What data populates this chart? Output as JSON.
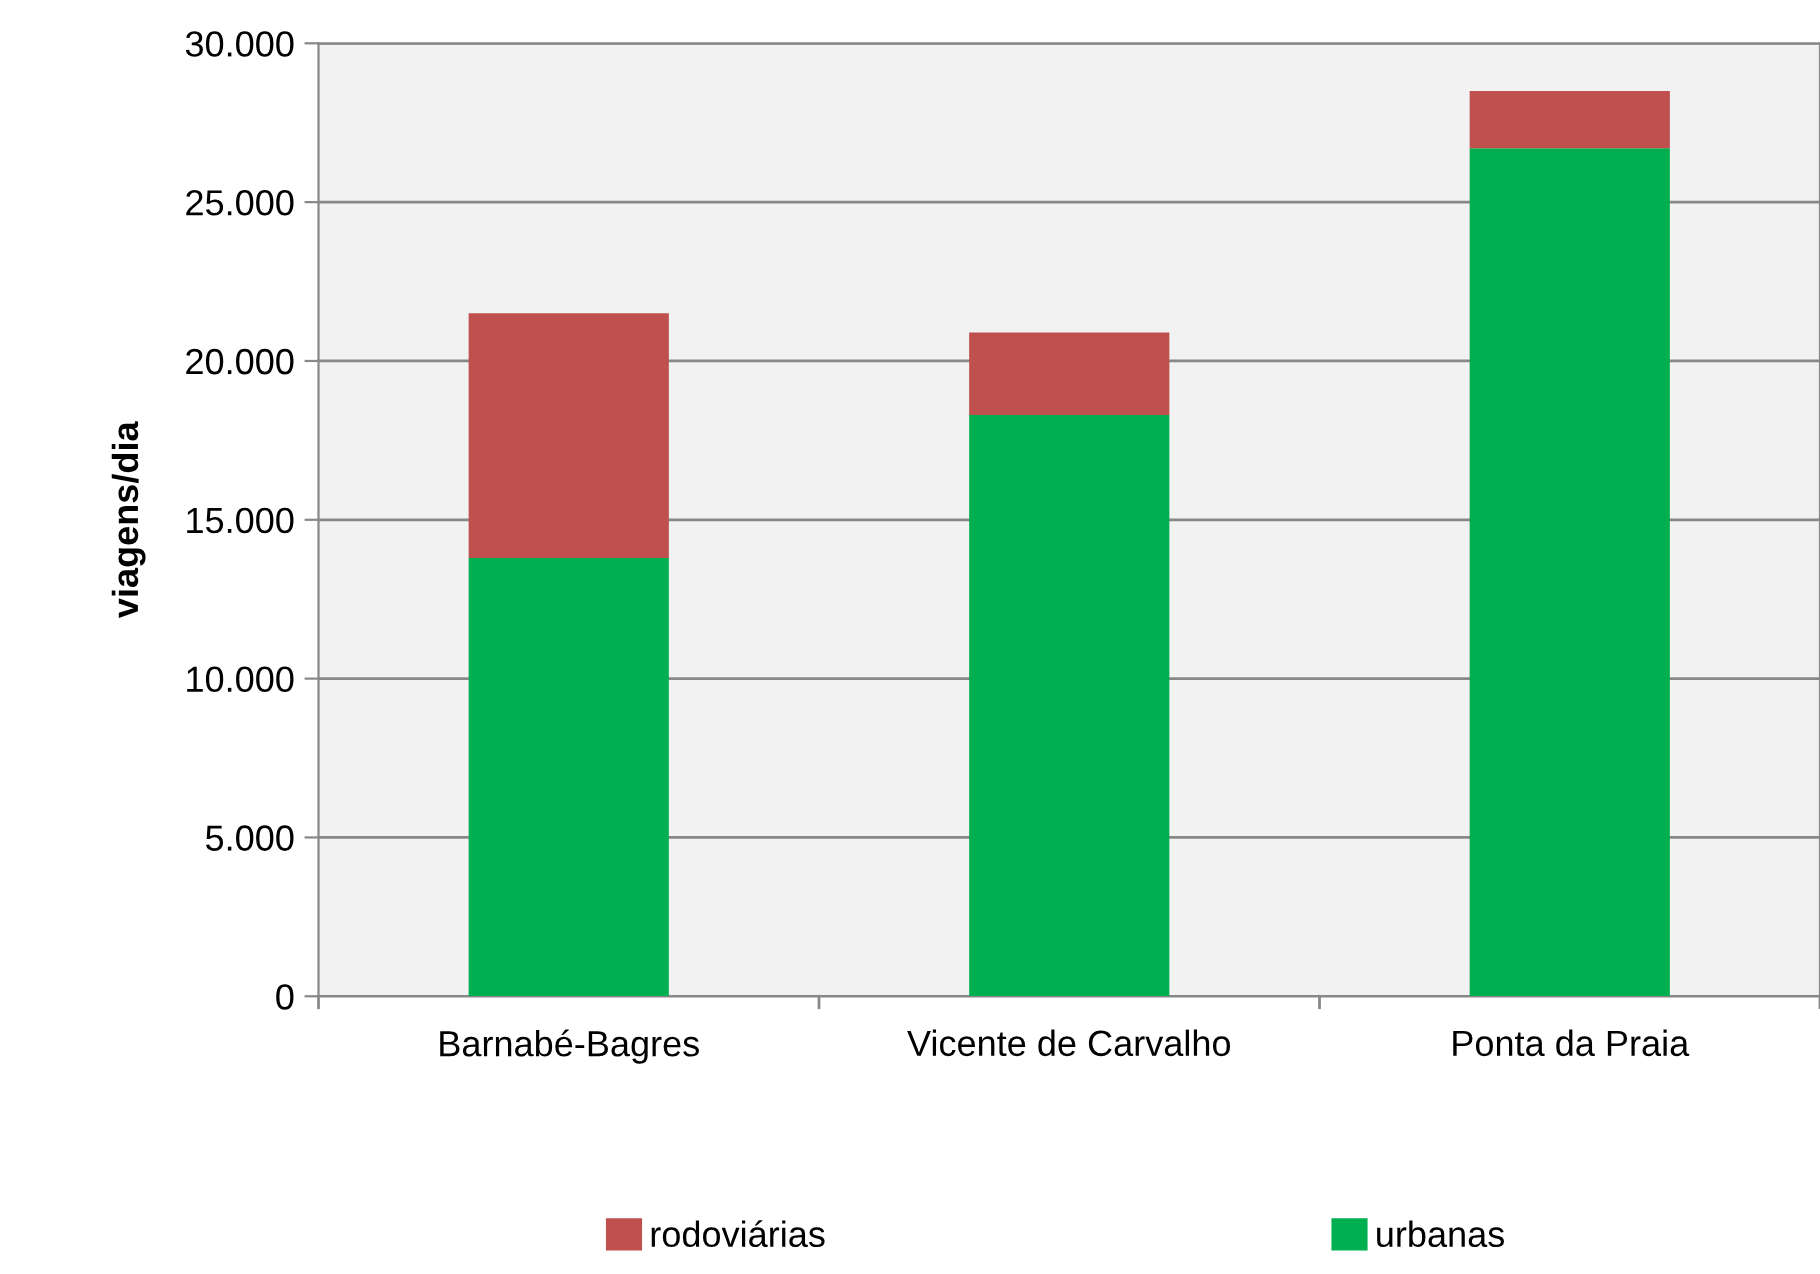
{
  "chart_data": {
    "type": "bar",
    "stacked": true,
    "ylabel": "viagens/dia",
    "categories": [
      "Barnabé-Bagres",
      "Vicente de Carvalho",
      "Ponta da Praia"
    ],
    "series": [
      {
        "name": "urbanas",
        "color": "#00b050",
        "values": [
          13800,
          18300,
          26700
        ]
      },
      {
        "name": "rodoviárias",
        "color": "#c0504d",
        "values": [
          7700,
          2600,
          1800
        ]
      }
    ],
    "ylim": [
      0,
      30000
    ],
    "yticks": [
      {
        "value": 0,
        "label": "0"
      },
      {
        "value": 5000,
        "label": "5.000"
      },
      {
        "value": 10000,
        "label": "10.000"
      },
      {
        "value": 15000,
        "label": "15.000"
      },
      {
        "value": 20000,
        "label": "20.000"
      },
      {
        "value": 25000,
        "label": "25.000"
      },
      {
        "value": 30000,
        "label": "30.000"
      }
    ],
    "grid": "y",
    "legend": "bottom"
  }
}
